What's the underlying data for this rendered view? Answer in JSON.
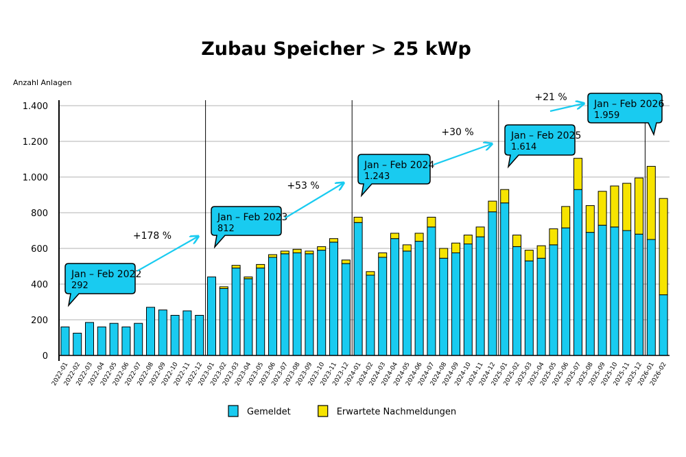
{
  "chart_data": {
    "type": "bar",
    "stacked": true,
    "title": "Zubau Speicher > 25 kWp",
    "y_label": "Anzahl Anlagen",
    "categories": [
      "2022-01",
      "2022-02",
      "2022-03",
      "2022-04",
      "2022-05",
      "2022-06",
      "2022-07",
      "2022-08",
      "2022-09",
      "2022-10",
      "2022-11",
      "2022-12",
      "2023-01",
      "2023-02",
      "2023-03",
      "2023-04",
      "2023-05",
      "2023-06",
      "2023-07",
      "2023-08",
      "2023-09",
      "2023-10",
      "2023-11",
      "2023-12",
      "2024-01",
      "2024-02",
      "2024-03",
      "2024-04",
      "2024-05",
      "2024-06",
      "2024-07",
      "2024-08",
      "2024-09",
      "2024-10",
      "2024-11",
      "2024-12",
      "2025-01",
      "2025-02",
      "2025-03",
      "2025-04",
      "2025-05",
      "2025-06",
      "2025-07",
      "2025-08",
      "2025-09",
      "2025-10",
      "2025-11",
      "2025-12",
      "2026-01",
      "2026-02"
    ],
    "series": [
      {
        "name": "Gemeldet",
        "color": "#19cbf0",
        "values": [
          160,
          125,
          185,
          160,
          180,
          160,
          180,
          270,
          255,
          225,
          250,
          225,
          440,
          375,
          490,
          430,
          490,
          550,
          570,
          575,
          570,
          590,
          635,
          515,
          745,
          450,
          550,
          655,
          585,
          640,
          720,
          545,
          575,
          625,
          665,
          805,
          855,
          610,
          530,
          545,
          620,
          715,
          930,
          690,
          730,
          720,
          700,
          680,
          650,
          340
        ]
      },
      {
        "name": "Erwartete Nachmeldungen",
        "color": "#f7e400",
        "values": [
          0,
          0,
          0,
          0,
          0,
          0,
          0,
          0,
          0,
          0,
          0,
          0,
          0,
          10,
          15,
          10,
          20,
          15,
          15,
          20,
          15,
          20,
          20,
          20,
          30,
          20,
          25,
          30,
          35,
          45,
          55,
          55,
          55,
          50,
          55,
          60,
          75,
          65,
          60,
          70,
          90,
          120,
          175,
          150,
          190,
          230,
          265,
          315,
          410,
          540
        ]
      }
    ],
    "ylim": [
      0,
      1400
    ],
    "yticks": [
      0,
      200,
      400,
      600,
      800,
      {
        "value": 1000,
        "label": "1.000"
      },
      {
        "value": 1200,
        "label": "1.200"
      },
      {
        "value": 1400,
        "label": "1.400"
      }
    ],
    "grid": true,
    "legend": "bottom",
    "annotations": [
      {
        "title": "Jan – Feb 2022",
        "value": "292"
      },
      {
        "title": "Jan – Feb 2023",
        "value": "812"
      },
      {
        "title": "Jan – Feb 2024",
        "value": "1.243"
      },
      {
        "title": "Jan – Feb 2025",
        "value": "1.614"
      },
      {
        "title": "Jan – Feb 2026",
        "value": "1.959"
      }
    ],
    "growth": [
      "+178 %",
      "+53 %",
      "+30 %",
      "+21 %"
    ]
  }
}
